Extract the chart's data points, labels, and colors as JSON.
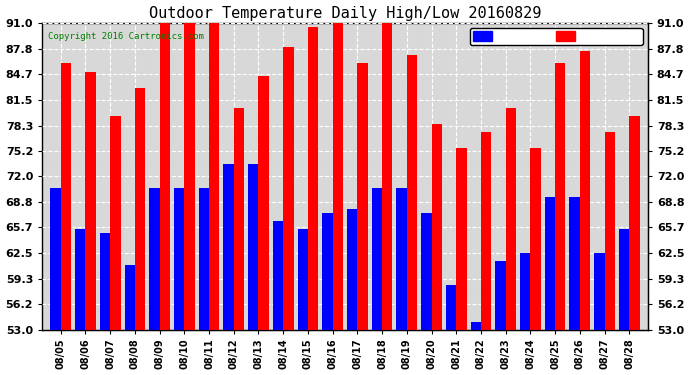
{
  "title": "Outdoor Temperature Daily High/Low 20160829",
  "copyright": "Copyright 2016 Cartronics.com",
  "dates": [
    "08/05",
    "08/06",
    "08/07",
    "08/08",
    "08/09",
    "08/10",
    "08/11",
    "08/12",
    "08/13",
    "08/14",
    "08/15",
    "08/16",
    "08/17",
    "08/18",
    "08/19",
    "08/20",
    "08/21",
    "08/22",
    "08/23",
    "08/24",
    "08/25",
    "08/26",
    "08/27",
    "08/28"
  ],
  "highs": [
    86.0,
    85.0,
    79.5,
    83.0,
    92.0,
    93.0,
    93.5,
    80.5,
    84.5,
    88.0,
    90.5,
    91.0,
    86.0,
    91.0,
    87.0,
    78.5,
    75.5,
    77.5,
    80.5,
    75.5,
    86.0,
    87.5,
    77.5,
    79.5
  ],
  "lows": [
    70.5,
    65.5,
    65.0,
    61.0,
    70.5,
    70.5,
    70.5,
    73.5,
    73.5,
    66.5,
    65.5,
    67.5,
    68.0,
    70.5,
    70.5,
    67.5,
    58.5,
    54.0,
    61.5,
    62.5,
    69.5,
    69.5,
    62.5,
    65.5
  ],
  "high_color": "#FF0000",
  "low_color": "#0000FF",
  "background_color": "#FFFFFF",
  "plot_bg_color": "#D8D8D8",
  "grid_color": "#FFFFFF",
  "title_fontsize": 11,
  "ymin": 53.0,
  "ymax": 91.0,
  "yticks": [
    53.0,
    56.2,
    59.3,
    62.5,
    65.7,
    68.8,
    72.0,
    75.2,
    78.3,
    81.5,
    84.7,
    87.8,
    91.0
  ],
  "bar_width": 0.42
}
